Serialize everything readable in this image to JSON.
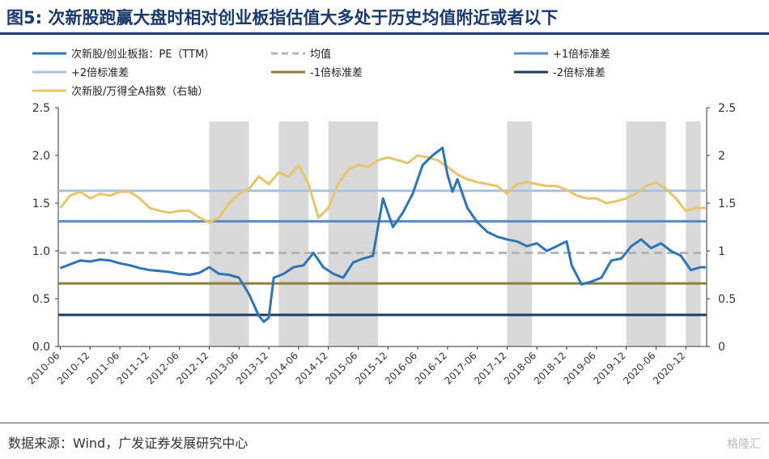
{
  "figure": {
    "title": "图5:  次新股跑赢大盘时相对创业板指估值大多处于历史均值附近或者以下",
    "source": "数据来源：Wind，广发证券发展研究中心",
    "watermark": "格隆汇"
  },
  "chart_data": {
    "type": "line",
    "x_ticks": [
      "2010-06",
      "2010-12",
      "2011-06",
      "2011-12",
      "2012-06",
      "2012-12",
      "2013-06",
      "2013-12",
      "2014-06",
      "2014-12",
      "2015-06",
      "2015-12",
      "2016-06",
      "2016-12",
      "2017-06",
      "2017-12",
      "2018-06",
      "2018-12",
      "2019-06",
      "2019-12",
      "2020-06",
      "2020-12"
    ],
    "x_range": [
      "2010-06",
      "2021-04"
    ],
    "ylim_left": [
      0,
      2.5
    ],
    "ylim_right": [
      0,
      2.5
    ],
    "y_ticks_left": [
      "0.0",
      "0.5",
      "1.0",
      "1.5",
      "2.0",
      "2.5"
    ],
    "y_ticks_right": [
      "0",
      "0.5",
      "1",
      "1.5",
      "2",
      "2.5"
    ],
    "grid": false,
    "legend_position": "top",
    "legend_columns": 3,
    "colors": {
      "pe": "#2e75b6",
      "mean": "#b4b4b4",
      "plus1": "#5b87c5",
      "plus2": "#a8c4e4",
      "minus1": "#8a7f3c",
      "minus2": "#1b3d5f",
      "index": "#e8c56a",
      "shade": "#d9d9d9"
    },
    "shaded_periods": [
      [
        "2012-12",
        "2013-08"
      ],
      [
        "2014-02",
        "2014-08"
      ],
      [
        "2014-12",
        "2015-10"
      ],
      [
        "2017-12",
        "2018-05"
      ],
      [
        "2019-12",
        "2020-08"
      ],
      [
        "2020-12",
        "2021-03"
      ]
    ],
    "reference_lines": [
      {
        "name": "均值",
        "value": 0.98,
        "style": "dashed",
        "color_key": "mean"
      },
      {
        "name": "+1倍标准差",
        "value": 1.31,
        "style": "solid",
        "color_key": "plus1"
      },
      {
        "name": "+2倍标准差",
        "value": 1.63,
        "style": "solid",
        "color_key": "plus2"
      },
      {
        "name": "-1倍标准差",
        "value": 0.66,
        "style": "solid",
        "color_key": "minus1"
      },
      {
        "name": "-2倍标准差",
        "value": 0.33,
        "style": "solid",
        "color_key": "minus2"
      }
    ],
    "series": [
      {
        "name": "次新股/创业板指：PE（TTM）",
        "axis": "left",
        "color_key": "pe",
        "points": [
          [
            "2010-06",
            0.82
          ],
          [
            "2010-08",
            0.86
          ],
          [
            "2010-10",
            0.9
          ],
          [
            "2010-12",
            0.89
          ],
          [
            "2011-02",
            0.91
          ],
          [
            "2011-04",
            0.9
          ],
          [
            "2011-06",
            0.87
          ],
          [
            "2011-08",
            0.85
          ],
          [
            "2011-10",
            0.82
          ],
          [
            "2011-12",
            0.8
          ],
          [
            "2012-02",
            0.79
          ],
          [
            "2012-04",
            0.78
          ],
          [
            "2012-06",
            0.76
          ],
          [
            "2012-08",
            0.75
          ],
          [
            "2012-10",
            0.77
          ],
          [
            "2012-12",
            0.83
          ],
          [
            "2013-02",
            0.76
          ],
          [
            "2013-04",
            0.75
          ],
          [
            "2013-06",
            0.72
          ],
          [
            "2013-08",
            0.55
          ],
          [
            "2013-10",
            0.32
          ],
          [
            "2013-11",
            0.26
          ],
          [
            "2013-12",
            0.3
          ],
          [
            "2014-01",
            0.72
          ],
          [
            "2014-03",
            0.76
          ],
          [
            "2014-05",
            0.83
          ],
          [
            "2014-07",
            0.85
          ],
          [
            "2014-09",
            0.98
          ],
          [
            "2014-11",
            0.83
          ],
          [
            "2015-01",
            0.76
          ],
          [
            "2015-03",
            0.72
          ],
          [
            "2015-05",
            0.88
          ],
          [
            "2015-07",
            0.92
          ],
          [
            "2015-09",
            0.95
          ],
          [
            "2015-11",
            1.55
          ],
          [
            "2016-01",
            1.25
          ],
          [
            "2016-03",
            1.4
          ],
          [
            "2016-05",
            1.6
          ],
          [
            "2016-07",
            1.9
          ],
          [
            "2016-09",
            2.0
          ],
          [
            "2016-11",
            2.08
          ],
          [
            "2016-12",
            1.8
          ],
          [
            "2017-01",
            1.62
          ],
          [
            "2017-02",
            1.75
          ],
          [
            "2017-04",
            1.45
          ],
          [
            "2017-06",
            1.3
          ],
          [
            "2017-08",
            1.2
          ],
          [
            "2017-10",
            1.15
          ],
          [
            "2017-12",
            1.12
          ],
          [
            "2018-02",
            1.1
          ],
          [
            "2018-04",
            1.05
          ],
          [
            "2018-06",
            1.08
          ],
          [
            "2018-08",
            1.0
          ],
          [
            "2018-10",
            1.05
          ],
          [
            "2018-12",
            1.1
          ],
          [
            "2019-01",
            0.85
          ],
          [
            "2019-03",
            0.65
          ],
          [
            "2019-05",
            0.68
          ],
          [
            "2019-07",
            0.72
          ],
          [
            "2019-09",
            0.9
          ],
          [
            "2019-11",
            0.92
          ],
          [
            "2020-01",
            1.05
          ],
          [
            "2020-03",
            1.12
          ],
          [
            "2020-05",
            1.03
          ],
          [
            "2020-07",
            1.08
          ],
          [
            "2020-09",
            1.0
          ],
          [
            "2020-11",
            0.95
          ],
          [
            "2021-01",
            0.8
          ],
          [
            "2021-03",
            0.83
          ],
          [
            "2021-04",
            0.83
          ]
        ]
      },
      {
        "name": "次新股/万得全A指数（右轴）",
        "axis": "right",
        "color_key": "index",
        "points": [
          [
            "2010-06",
            1.45
          ],
          [
            "2010-08",
            1.58
          ],
          [
            "2010-10",
            1.62
          ],
          [
            "2010-12",
            1.55
          ],
          [
            "2011-02",
            1.6
          ],
          [
            "2011-04",
            1.58
          ],
          [
            "2011-06",
            1.62
          ],
          [
            "2011-08",
            1.62
          ],
          [
            "2011-10",
            1.55
          ],
          [
            "2011-12",
            1.45
          ],
          [
            "2012-02",
            1.42
          ],
          [
            "2012-04",
            1.4
          ],
          [
            "2012-06",
            1.42
          ],
          [
            "2012-08",
            1.42
          ],
          [
            "2012-10",
            1.35
          ],
          [
            "2012-12",
            1.3
          ],
          [
            "2013-02",
            1.35
          ],
          [
            "2013-04",
            1.5
          ],
          [
            "2013-06",
            1.6
          ],
          [
            "2013-08",
            1.65
          ],
          [
            "2013-10",
            1.78
          ],
          [
            "2013-12",
            1.7
          ],
          [
            "2014-02",
            1.82
          ],
          [
            "2014-04",
            1.78
          ],
          [
            "2014-06",
            1.9
          ],
          [
            "2014-08",
            1.7
          ],
          [
            "2014-10",
            1.35
          ],
          [
            "2014-12",
            1.45
          ],
          [
            "2015-02",
            1.7
          ],
          [
            "2015-04",
            1.85
          ],
          [
            "2015-06",
            1.9
          ],
          [
            "2015-08",
            1.88
          ],
          [
            "2015-10",
            1.95
          ],
          [
            "2015-12",
            1.98
          ],
          [
            "2016-02",
            1.95
          ],
          [
            "2016-04",
            1.92
          ],
          [
            "2016-06",
            2.0
          ],
          [
            "2016-08",
            1.98
          ],
          [
            "2016-10",
            1.95
          ],
          [
            "2016-12",
            1.88
          ],
          [
            "2017-02",
            1.8
          ],
          [
            "2017-04",
            1.75
          ],
          [
            "2017-06",
            1.72
          ],
          [
            "2017-08",
            1.7
          ],
          [
            "2017-10",
            1.68
          ],
          [
            "2017-12",
            1.6
          ],
          [
            "2018-02",
            1.7
          ],
          [
            "2018-04",
            1.72
          ],
          [
            "2018-06",
            1.7
          ],
          [
            "2018-08",
            1.68
          ],
          [
            "2018-10",
            1.68
          ],
          [
            "2018-12",
            1.64
          ],
          [
            "2019-02",
            1.58
          ],
          [
            "2019-04",
            1.55
          ],
          [
            "2019-06",
            1.55
          ],
          [
            "2019-08",
            1.5
          ],
          [
            "2019-10",
            1.52
          ],
          [
            "2019-12",
            1.55
          ],
          [
            "2020-02",
            1.6
          ],
          [
            "2020-04",
            1.68
          ],
          [
            "2020-06",
            1.72
          ],
          [
            "2020-08",
            1.65
          ],
          [
            "2020-10",
            1.55
          ],
          [
            "2020-12",
            1.42
          ],
          [
            "2021-02",
            1.45
          ],
          [
            "2021-04",
            1.45
          ]
        ]
      }
    ]
  }
}
